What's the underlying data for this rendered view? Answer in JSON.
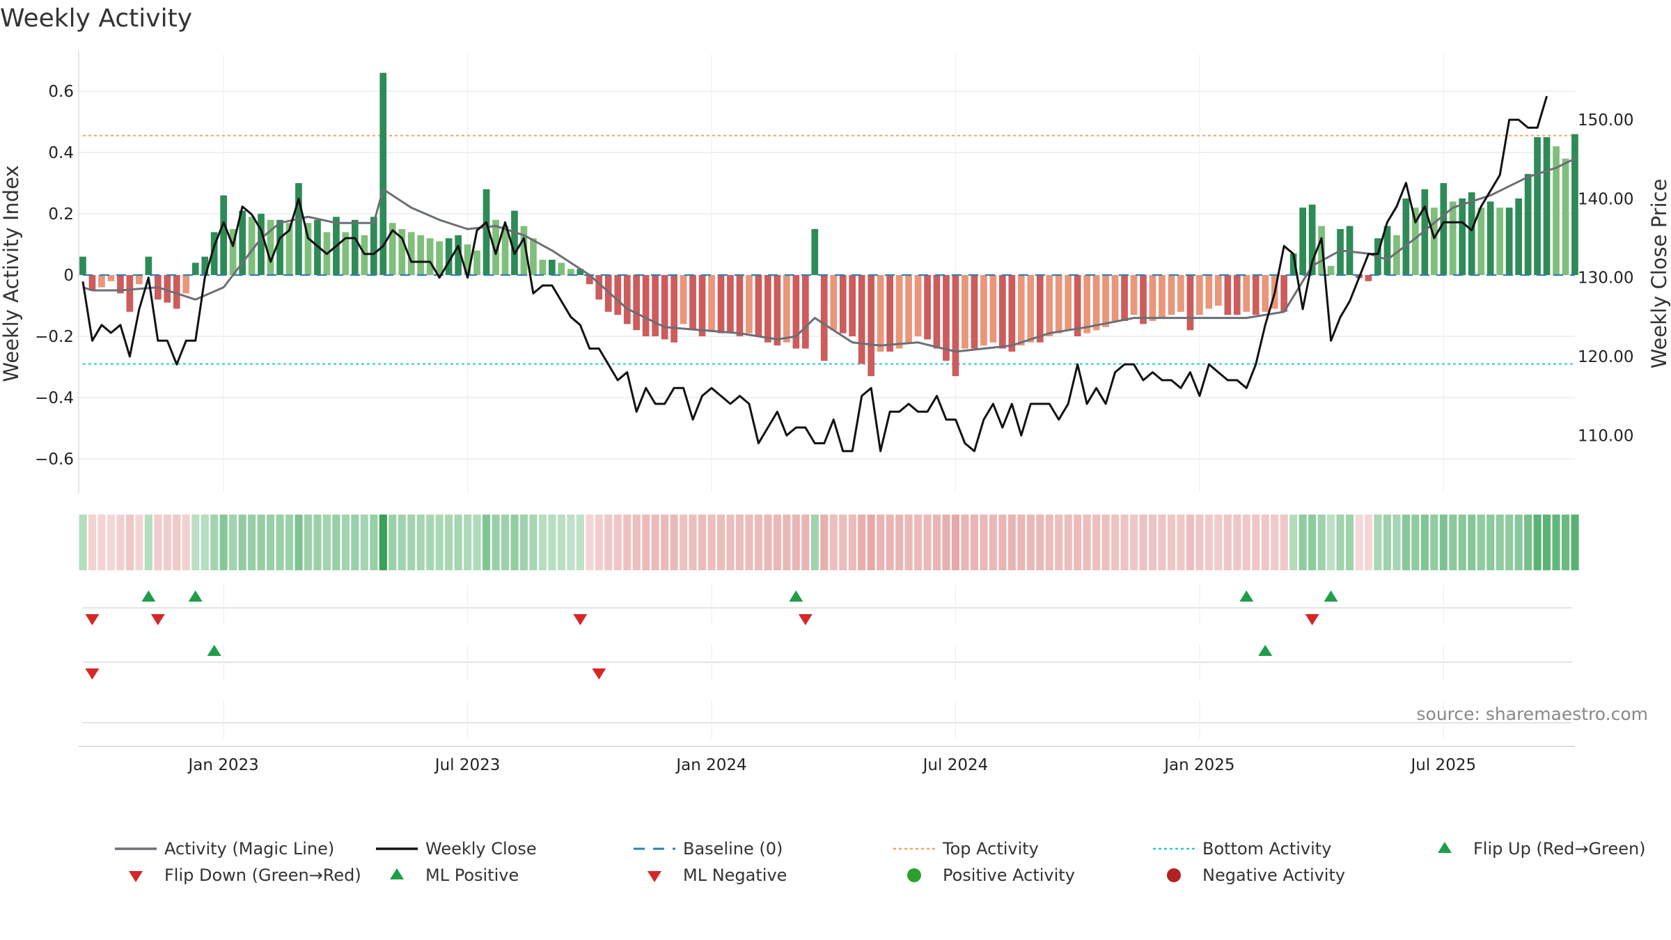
{
  "chart_data": {
    "type": "bar+line",
    "title": "Weekly Activity",
    "ylabel_left": "Weekly Activity Index",
    "ylabel_right": "Weekly Close Price",
    "source": "source: sharemaestro.com",
    "ylim_left": [
      -0.72,
      0.72
    ],
    "ylim_right": [
      102.7,
      158.3
    ],
    "yticks_left": [
      {
        "value": 0.6,
        "label": "0.6"
      },
      {
        "value": 0.4,
        "label": "0.4"
      },
      {
        "value": 0.2,
        "label": "0.2"
      },
      {
        "value": 0,
        "label": "0"
      },
      {
        "value": -0.2,
        "label": "−0.2"
      },
      {
        "value": -0.4,
        "label": "−0.4"
      },
      {
        "value": -0.6,
        "label": "−0.6"
      }
    ],
    "yticks_right": [
      {
        "value": 150,
        "label": "150.00"
      },
      {
        "value": 140,
        "label": "140.00"
      },
      {
        "value": 130,
        "label": "130.00"
      },
      {
        "value": 120,
        "label": "120.00"
      },
      {
        "value": 110,
        "label": "110.00"
      }
    ],
    "xticks": [
      {
        "week": 15,
        "label": "Jan 2023"
      },
      {
        "week": 41,
        "label": "Jul 2023"
      },
      {
        "week": 67,
        "label": "Jan 2024"
      },
      {
        "week": 93,
        "label": "Jul 2024"
      },
      {
        "week": 119,
        "label": "Jan 2025"
      },
      {
        "week": 145,
        "label": "Jul 2025"
      }
    ],
    "top_activity": 0.455,
    "bottom_activity": -0.29,
    "baseline": 0,
    "activity_keypoints": [
      [
        0,
        0.06
      ],
      [
        1,
        -0.05
      ],
      [
        2,
        -0.04
      ],
      [
        3,
        -0.02
      ],
      [
        4,
        -0.06
      ],
      [
        5,
        -0.12
      ],
      [
        6,
        -0.03
      ],
      [
        7,
        0.06
      ],
      [
        8,
        -0.08
      ],
      [
        9,
        -0.09
      ],
      [
        10,
        -0.11
      ],
      [
        11,
        -0.06
      ],
      [
        12,
        0.04
      ],
      [
        13,
        0.06
      ],
      [
        14,
        0.14
      ],
      [
        15,
        0.26
      ],
      [
        16,
        0.15
      ],
      [
        17,
        0.21
      ],
      [
        18,
        0.19
      ],
      [
        19,
        0.2
      ],
      [
        20,
        0.18
      ],
      [
        21,
        0.18
      ],
      [
        22,
        0.17
      ],
      [
        23,
        0.3
      ],
      [
        24,
        0.17
      ],
      [
        25,
        0.18
      ],
      [
        26,
        0.14
      ],
      [
        27,
        0.19
      ],
      [
        28,
        0.14
      ],
      [
        29,
        0.18
      ],
      [
        30,
        0.13
      ],
      [
        31,
        0.19
      ],
      [
        32,
        0.66
      ],
      [
        33,
        0.17
      ],
      [
        34,
        0.15
      ],
      [
        35,
        0.14
      ],
      [
        36,
        0.13
      ],
      [
        37,
        0.12
      ],
      [
        38,
        0.11
      ],
      [
        39,
        0.12
      ],
      [
        40,
        0.13
      ],
      [
        41,
        0.1
      ],
      [
        42,
        0.08
      ],
      [
        43,
        0.28
      ],
      [
        44,
        0.18
      ],
      [
        45,
        0.16
      ],
      [
        46,
        0.21
      ],
      [
        47,
        0.16
      ],
      [
        48,
        0.12
      ],
      [
        49,
        0.05
      ],
      [
        50,
        0.05
      ],
      [
        51,
        0.04
      ],
      [
        52,
        0.02
      ],
      [
        53,
        0.02
      ],
      [
        54,
        -0.03
      ],
      [
        55,
        -0.08
      ],
      [
        56,
        -0.12
      ],
      [
        57,
        -0.13
      ],
      [
        58,
        -0.16
      ],
      [
        59,
        -0.18
      ],
      [
        60,
        -0.2
      ],
      [
        61,
        -0.2
      ],
      [
        62,
        -0.21
      ],
      [
        63,
        -0.22
      ],
      [
        64,
        -0.16
      ],
      [
        65,
        -0.18
      ],
      [
        66,
        -0.2
      ],
      [
        67,
        -0.18
      ],
      [
        68,
        -0.19
      ],
      [
        69,
        -0.19
      ],
      [
        70,
        -0.2
      ],
      [
        71,
        -0.19
      ],
      [
        72,
        -0.2
      ],
      [
        73,
        -0.22
      ],
      [
        74,
        -0.23
      ],
      [
        75,
        -0.22
      ],
      [
        76,
        -0.24
      ],
      [
        77,
        -0.24
      ],
      [
        78,
        0.15
      ],
      [
        79,
        -0.28
      ],
      [
        80,
        -0.18
      ],
      [
        81,
        -0.19
      ],
      [
        82,
        -0.2
      ],
      [
        83,
        -0.29
      ],
      [
        84,
        -0.33
      ],
      [
        85,
        -0.25
      ],
      [
        86,
        -0.25
      ],
      [
        87,
        -0.24
      ],
      [
        88,
        -0.22
      ],
      [
        89,
        -0.2
      ],
      [
        90,
        -0.21
      ],
      [
        91,
        -0.24
      ],
      [
        92,
        -0.28
      ],
      [
        93,
        -0.33
      ],
      [
        94,
        -0.24
      ],
      [
        95,
        -0.24
      ],
      [
        96,
        -0.23
      ],
      [
        97,
        -0.22
      ],
      [
        98,
        -0.24
      ],
      [
        99,
        -0.25
      ],
      [
        100,
        -0.23
      ],
      [
        101,
        -0.22
      ],
      [
        102,
        -0.22
      ],
      [
        103,
        -0.2
      ],
      [
        104,
        -0.19
      ],
      [
        105,
        -0.18
      ],
      [
        106,
        -0.2
      ],
      [
        107,
        -0.19
      ],
      [
        108,
        -0.18
      ],
      [
        109,
        -0.17
      ],
      [
        110,
        -0.15
      ],
      [
        111,
        -0.15
      ],
      [
        112,
        -0.13
      ],
      [
        113,
        -0.16
      ],
      [
        114,
        -0.15
      ],
      [
        115,
        -0.14
      ],
      [
        116,
        -0.13
      ],
      [
        117,
        -0.12
      ],
      [
        118,
        -0.18
      ],
      [
        119,
        -0.13
      ],
      [
        120,
        -0.11
      ],
      [
        121,
        -0.1
      ],
      [
        122,
        -0.13
      ],
      [
        123,
        -0.13
      ],
      [
        124,
        -0.12
      ],
      [
        125,
        -0.13
      ],
      [
        126,
        -0.12
      ],
      [
        127,
        -0.11
      ],
      [
        128,
        -0.12
      ],
      [
        129,
        0.07
      ],
      [
        130,
        0.22
      ],
      [
        131,
        0.23
      ],
      [
        132,
        0.16
      ],
      [
        133,
        0.03
      ],
      [
        134,
        0.15
      ],
      [
        135,
        0.16
      ],
      [
        136,
        -0.01
      ],
      [
        137,
        -0.02
      ],
      [
        138,
        0.12
      ],
      [
        139,
        0.16
      ],
      [
        140,
        0.13
      ],
      [
        141,
        0.25
      ],
      [
        142,
        0.22
      ],
      [
        143,
        0.28
      ],
      [
        144,
        0.22
      ],
      [
        145,
        0.3
      ],
      [
        146,
        0.24
      ],
      [
        147,
        0.25
      ],
      [
        148,
        0.27
      ],
      [
        149,
        0.22
      ],
      [
        150,
        0.24
      ],
      [
        151,
        0.22
      ],
      [
        152,
        0.22
      ],
      [
        153,
        0.25
      ],
      [
        154,
        0.33
      ],
      [
        155,
        0.45
      ],
      [
        156,
        0.45
      ],
      [
        157,
        0.42
      ],
      [
        158,
        0.38
      ],
      [
        159,
        0.46
      ]
    ],
    "magic_line_keypoints": [
      [
        0,
        -0.04
      ],
      [
        1,
        -0.05
      ],
      [
        4,
        -0.05
      ],
      [
        8,
        -0.04
      ],
      [
        12,
        -0.08
      ],
      [
        15,
        -0.04
      ],
      [
        19,
        0.12
      ],
      [
        21,
        0.17
      ],
      [
        24,
        0.19
      ],
      [
        27,
        0.17
      ],
      [
        31,
        0.17
      ],
      [
        32,
        0.28
      ],
      [
        35,
        0.22
      ],
      [
        38,
        0.18
      ],
      [
        41,
        0.15
      ],
      [
        44,
        0.16
      ],
      [
        47,
        0.13
      ],
      [
        50,
        0.08
      ],
      [
        54,
        0.0
      ],
      [
        58,
        -0.11
      ],
      [
        62,
        -0.17
      ],
      [
        66,
        -0.18
      ],
      [
        70,
        -0.19
      ],
      [
        74,
        -0.21
      ],
      [
        76,
        -0.2
      ],
      [
        78,
        -0.14
      ],
      [
        80,
        -0.18
      ],
      [
        82,
        -0.22
      ],
      [
        85,
        -0.23
      ],
      [
        89,
        -0.22
      ],
      [
        93,
        -0.25
      ],
      [
        96,
        -0.24
      ],
      [
        99,
        -0.23
      ],
      [
        103,
        -0.19
      ],
      [
        107,
        -0.17
      ],
      [
        112,
        -0.14
      ],
      [
        116,
        -0.14
      ],
      [
        120,
        -0.14
      ],
      [
        124,
        -0.14
      ],
      [
        128,
        -0.12
      ],
      [
        131,
        0.03
      ],
      [
        134,
        0.08
      ],
      [
        137,
        0.07
      ],
      [
        139,
        0.05
      ],
      [
        142,
        0.12
      ],
      [
        146,
        0.22
      ],
      [
        150,
        0.26
      ],
      [
        154,
        0.32
      ],
      [
        157,
        0.35
      ],
      [
        159,
        0.38
      ]
    ],
    "close_keypoints": [
      [
        0,
        129.5
      ],
      [
        1,
        122
      ],
      [
        2,
        124
      ],
      [
        3,
        123
      ],
      [
        4,
        124
      ],
      [
        5,
        120
      ],
      [
        6,
        126
      ],
      [
        7,
        130
      ],
      [
        8,
        122
      ],
      [
        9,
        122
      ],
      [
        10,
        119
      ],
      [
        11,
        122
      ],
      [
        12,
        122
      ],
      [
        13,
        130
      ],
      [
        14,
        134
      ],
      [
        15,
        137
      ],
      [
        16,
        134
      ],
      [
        17,
        139
      ],
      [
        18,
        138
      ],
      [
        19,
        136
      ],
      [
        20,
        132
      ],
      [
        21,
        135
      ],
      [
        22,
        136
      ],
      [
        23,
        140
      ],
      [
        24,
        135
      ],
      [
        25,
        134
      ],
      [
        26,
        133
      ],
      [
        27,
        134
      ],
      [
        28,
        135
      ],
      [
        29,
        135
      ],
      [
        30,
        133
      ],
      [
        31,
        133
      ],
      [
        32,
        134
      ],
      [
        33,
        136
      ],
      [
        34,
        135
      ],
      [
        35,
        132
      ],
      [
        36,
        132
      ],
      [
        37,
        132
      ],
      [
        38,
        130
      ],
      [
        39,
        132
      ],
      [
        40,
        134
      ],
      [
        41,
        130
      ],
      [
        42,
        136
      ],
      [
        43,
        137
      ],
      [
        44,
        133
      ],
      [
        45,
        137
      ],
      [
        46,
        133
      ],
      [
        47,
        135
      ],
      [
        48,
        128
      ],
      [
        49,
        129
      ],
      [
        50,
        129
      ],
      [
        51,
        127
      ],
      [
        52,
        125
      ],
      [
        53,
        124
      ],
      [
        54,
        121
      ],
      [
        55,
        121
      ],
      [
        56,
        119
      ],
      [
        57,
        117
      ],
      [
        58,
        118
      ],
      [
        59,
        113
      ],
      [
        60,
        116
      ],
      [
        61,
        114
      ],
      [
        62,
        114
      ],
      [
        63,
        116
      ],
      [
        64,
        116
      ],
      [
        65,
        112
      ],
      [
        66,
        115
      ],
      [
        67,
        116
      ],
      [
        68,
        115
      ],
      [
        69,
        114
      ],
      [
        70,
        115
      ],
      [
        71,
        114
      ],
      [
        72,
        109
      ],
      [
        73,
        111
      ],
      [
        74,
        113
      ],
      [
        75,
        110
      ],
      [
        76,
        111
      ],
      [
        77,
        111
      ],
      [
        78,
        109
      ],
      [
        79,
        109
      ],
      [
        80,
        112
      ],
      [
        81,
        108
      ],
      [
        82,
        108
      ],
      [
        83,
        115
      ],
      [
        84,
        116
      ],
      [
        85,
        108
      ],
      [
        86,
        113
      ],
      [
        87,
        113
      ],
      [
        88,
        114
      ],
      [
        89,
        113
      ],
      [
        90,
        113
      ],
      [
        91,
        115
      ],
      [
        92,
        112
      ],
      [
        93,
        112
      ],
      [
        94,
        109
      ],
      [
        95,
        108
      ],
      [
        96,
        112
      ],
      [
        97,
        114
      ],
      [
        98,
        111
      ],
      [
        99,
        114
      ],
      [
        100,
        110
      ],
      [
        101,
        114
      ],
      [
        102,
        114
      ],
      [
        103,
        114
      ],
      [
        104,
        112
      ],
      [
        105,
        114
      ],
      [
        106,
        119
      ],
      [
        107,
        114
      ],
      [
        108,
        116
      ],
      [
        109,
        114
      ],
      [
        110,
        118
      ],
      [
        111,
        119
      ],
      [
        112,
        119
      ],
      [
        113,
        117
      ],
      [
        114,
        118
      ],
      [
        115,
        117
      ],
      [
        116,
        117
      ],
      [
        117,
        116
      ],
      [
        118,
        118
      ],
      [
        119,
        115
      ],
      [
        120,
        119
      ],
      [
        121,
        118
      ],
      [
        122,
        117
      ],
      [
        123,
        117
      ],
      [
        124,
        116
      ],
      [
        125,
        119
      ],
      [
        126,
        124
      ],
      [
        127,
        128
      ],
      [
        128,
        134
      ],
      [
        129,
        133
      ],
      [
        130,
        126
      ],
      [
        131,
        132
      ],
      [
        132,
        135
      ],
      [
        133,
        122
      ],
      [
        134,
        125
      ],
      [
        135,
        127
      ],
      [
        136,
        130
      ],
      [
        137,
        133
      ],
      [
        138,
        133
      ],
      [
        139,
        137
      ],
      [
        140,
        139
      ],
      [
        141,
        142
      ],
      [
        142,
        137
      ],
      [
        143,
        139
      ],
      [
        144,
        135
      ],
      [
        145,
        137
      ],
      [
        146,
        137
      ],
      [
        147,
        137
      ],
      [
        148,
        136
      ],
      [
        149,
        139
      ],
      [
        150,
        141
      ],
      [
        151,
        143
      ],
      [
        152,
        150
      ],
      [
        153,
        150
      ],
      [
        154,
        149
      ],
      [
        155,
        149
      ],
      [
        156,
        153
      ]
    ],
    "flip_up_weeks": [
      7,
      12,
      76,
      124,
      133
    ],
    "flip_down_weeks": [
      1,
      8,
      53,
      77,
      131
    ],
    "ml_positive_weeks": [
      14,
      126
    ],
    "ml_negative_weeks": [
      1,
      55
    ]
  },
  "legend": {
    "items": [
      {
        "label": "Activity (Magic Line)",
        "kind": "line",
        "color": "#6b6f75"
      },
      {
        "label": "Weekly Close",
        "kind": "line",
        "color": "#111111"
      },
      {
        "label": "Baseline (0)",
        "kind": "dash",
        "color": "#2c7fb8"
      },
      {
        "label": "Top Activity",
        "kind": "dot",
        "color": "#f4a261"
      },
      {
        "label": "Bottom Activity",
        "kind": "dot",
        "color": "#26c6da"
      },
      {
        "label": "Flip Up (Red→Green)",
        "kind": "up",
        "color": "#1e9e4a"
      },
      {
        "label": "Flip Down (Green→Red)",
        "kind": "down",
        "color": "#d62728"
      },
      {
        "label": "ML Positive",
        "kind": "up",
        "color": "#1e9e4a"
      },
      {
        "label": "ML Negative",
        "kind": "down",
        "color": "#d62728"
      },
      {
        "label": "Positive Activity",
        "kind": "circle",
        "color": "#2ca02c"
      },
      {
        "label": "Negative Activity",
        "kind": "circle",
        "color": "#b22222"
      }
    ]
  },
  "colors": {
    "pos_strong": "#2e8b57",
    "pos_light": "#7fbf7b",
    "neg_strong": "#cd5c5c",
    "neg_light": "#e9967a",
    "magic_line": "#6b6f75",
    "close_line": "#111111",
    "baseline": "#2c7fb8",
    "top": "#f4a261",
    "bottom": "#26c6da",
    "up_marker": "#1e9e4a",
    "down_marker": "#d62728",
    "grid": "#e6e6e6"
  }
}
